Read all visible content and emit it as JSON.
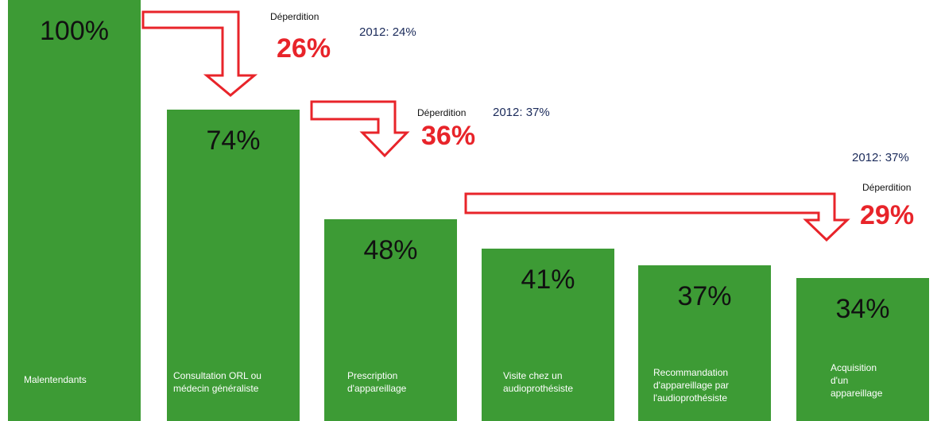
{
  "chart_data": {
    "type": "bar",
    "categories": [
      "Malentendants",
      "Consultation ORL ou médecin généraliste",
      "Prescription d'appareillage",
      "Visite chez un audioprothésiste",
      "Recommandation d'appareillage par l'audioprothésiste",
      "Acquisition d'un appareillage"
    ],
    "values": [
      100,
      74,
      48,
      41,
      37,
      34
    ],
    "value_labels": [
      "100%",
      "74%",
      "48%",
      "41%",
      "37%",
      "34%"
    ],
    "color": "#3d9b35",
    "ylim": [
      0,
      100
    ],
    "annotations": [
      {
        "label": "Déperdition",
        "value": "26%",
        "note": "2012: 24%"
      },
      {
        "label": "Déperdition",
        "value": "36%",
        "note": "2012: 37%"
      },
      {
        "label": "Déperdition",
        "value": "29%",
        "note": "2012: 37%"
      }
    ]
  }
}
